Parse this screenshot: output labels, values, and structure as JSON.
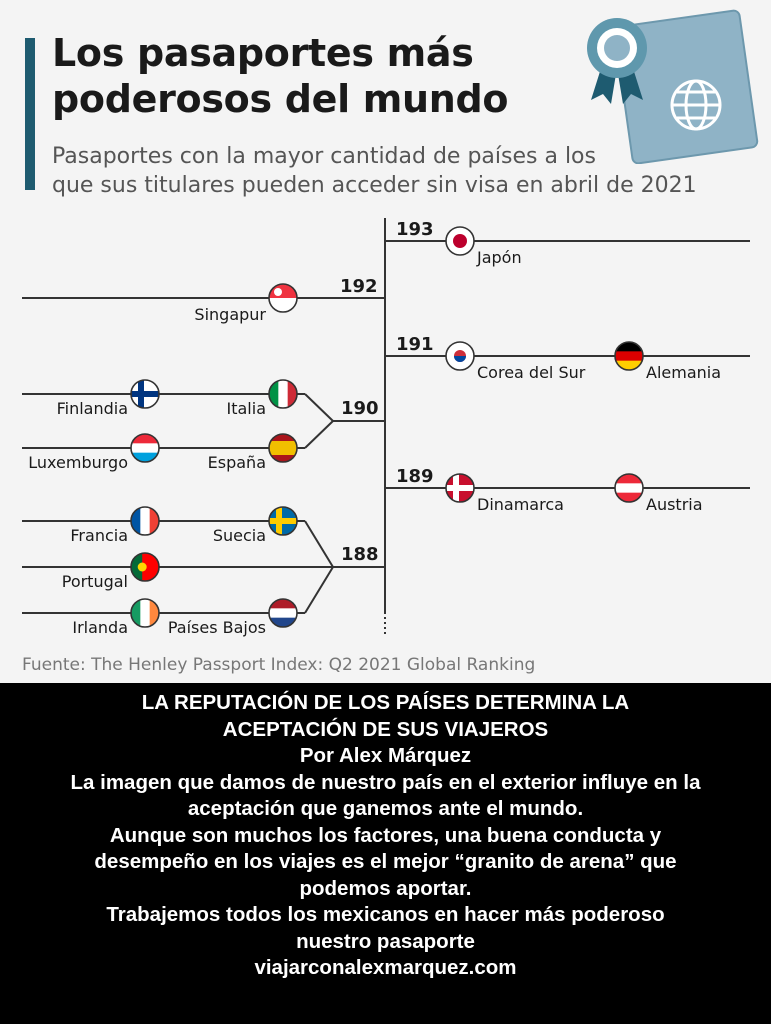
{
  "infographic": {
    "title": "Los pasaportes más\npoderosos del mundo",
    "subtitle": "Pasaportes con la mayor cantidad de países a los\nque sus titulares pueden acceder sin visa en abril de 2021",
    "source": "Fuente: The Henley Passport Index: Q2 2021 Global Ranking",
    "illustration_icons": [
      "award-badge-icon",
      "passport-icon",
      "globe-icon"
    ],
    "colors": {
      "accent": "#1e5b70",
      "passport": "#8fb3c6",
      "line": "#333333",
      "background": "#f4f4f4"
    }
  },
  "chart_data": {
    "type": "bracket",
    "title": "Los pasaportes más poderosos del mundo",
    "subtitle": "Pasaportes con la mayor cantidad de países a los que sus titulares pueden acceder sin visa en abril de 2021",
    "source": "Fuente: The Henley Passport Index: Q2 2021 Global Ranking",
    "groups": [
      {
        "score": 193,
        "countries": [
          "Japón"
        ]
      },
      {
        "score": 192,
        "countries": [
          "Singapur"
        ]
      },
      {
        "score": 191,
        "countries": [
          "Corea del Sur",
          "Alemania"
        ]
      },
      {
        "score": 190,
        "countries": [
          "Finlandia",
          "Italia",
          "Luxemburgo",
          "España"
        ]
      },
      {
        "score": 189,
        "countries": [
          "Dinamarca",
          "Austria"
        ]
      },
      {
        "score": 188,
        "countries": [
          "Francia",
          "Suecia",
          "Portugal",
          "Irlanda",
          "Países Bajos"
        ]
      }
    ]
  },
  "caption": {
    "lines": [
      "LA REPUTACIÓN DE LOS PAÍSES DETERMINA LA",
      "ACEPTACIÓN DE SUS VIAJEROS",
      "Por Alex Márquez",
      "La imagen que damos de nuestro país en el exterior influye en la",
      "aceptación que ganemos ante el mundo.",
      "Aunque son muchos los factores, una buena conducta y",
      "desempeño en los viajes es el mejor “granito de arena” que",
      "podemos aportar.",
      "Trabajemos todos los mexicanos en hacer más poderoso",
      "nuestro pasaporte",
      "viajarconalexmarquez.com"
    ]
  }
}
